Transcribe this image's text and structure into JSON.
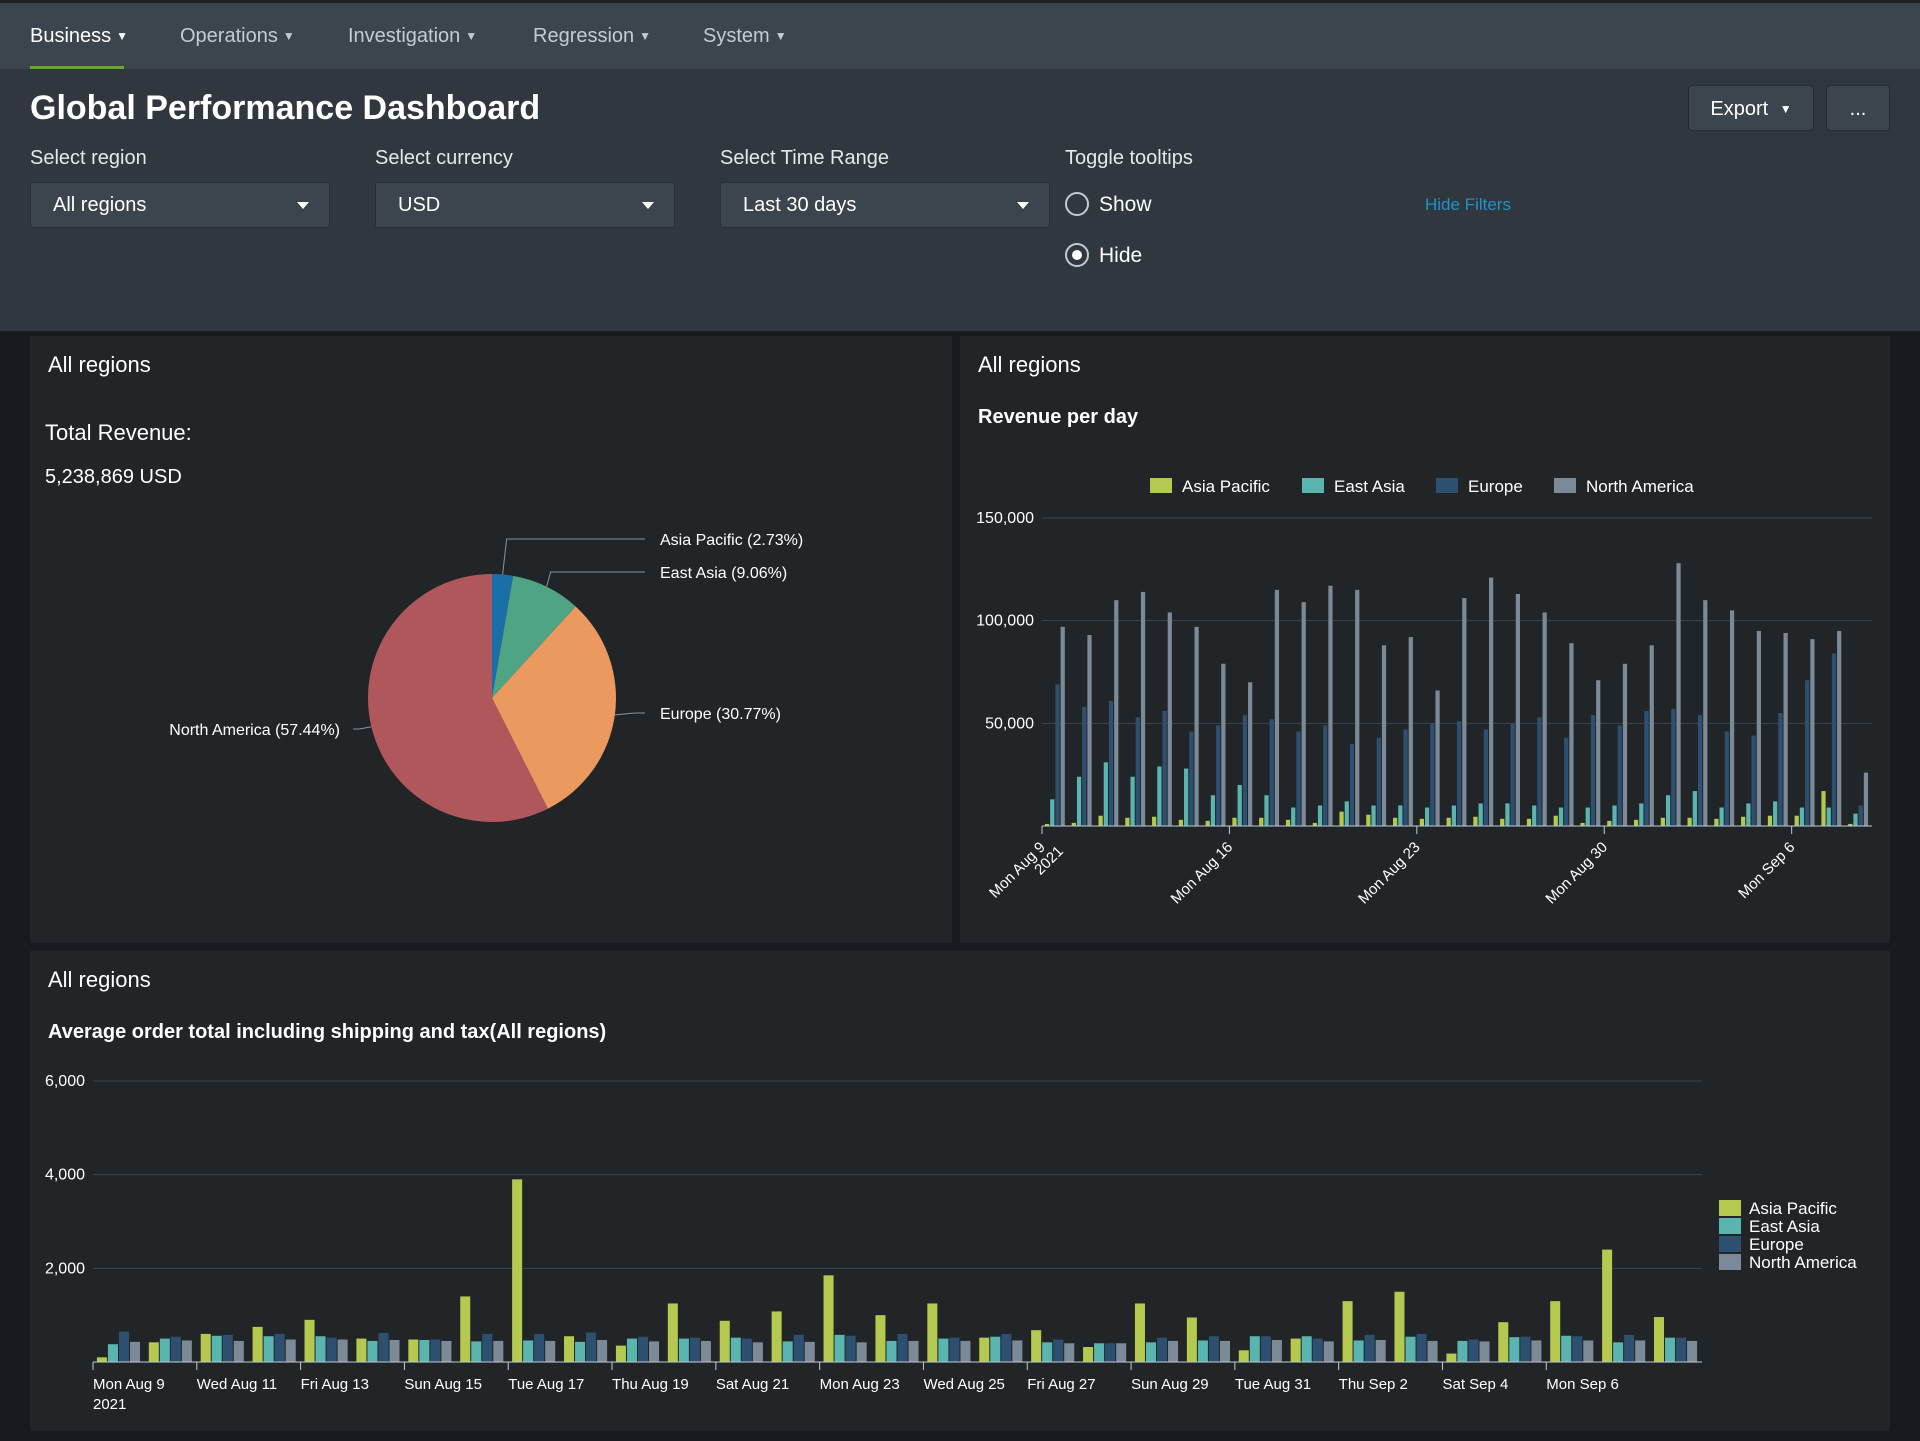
{
  "nav": {
    "items": [
      "Business",
      "Operations",
      "Investigation",
      "Regression",
      "System"
    ],
    "active": "Business"
  },
  "header": {
    "title": "Global Performance Dashboard",
    "export_label": "Export",
    "more_label": "...",
    "hide_filters": "Hide Filters"
  },
  "filters": {
    "region": {
      "label": "Select region",
      "value": "All regions"
    },
    "currency": {
      "label": "Select currency",
      "value": "USD"
    },
    "time_range": {
      "label": "Select Time Range",
      "value": "Last 30 days"
    },
    "tooltips": {
      "label": "Toggle tooltips",
      "options": [
        "Show",
        "Hide"
      ],
      "selected": "Hide"
    }
  },
  "panels": {
    "pie": {
      "title": "All regions",
      "total_label": "Total Revenue:",
      "total_value": "5,238,869 USD"
    },
    "revenue": {
      "title": "All regions"
    },
    "avg_order": {
      "title": "All regions"
    }
  },
  "colors": {
    "asia_pacific": "#b5c84f",
    "east_asia": "#5ab5b0",
    "europe": "#2d5071",
    "north_america": "#7c8a97"
  },
  "chart_data": [
    {
      "type": "pie",
      "title": "Total Revenue",
      "labels": [
        "Asia Pacific (2.73%)",
        "East Asia (9.06%)",
        "Europe (30.77%)",
        "North America (57.44%)"
      ],
      "values": [
        2.73,
        9.06,
        30.77,
        57.44
      ],
      "colors": [
        "#1b6fa8",
        "#4fa484",
        "#ec9960",
        "#b0575c"
      ]
    },
    {
      "type": "bar",
      "title": "Revenue per day",
      "legend": [
        "Asia Pacific",
        "East Asia",
        "Europe",
        "North America"
      ],
      "x_tick_labels": [
        {
          "index": 0,
          "label": "Mon Aug 9",
          "label2": "2021"
        },
        {
          "index": 7,
          "label": "Mon Aug 16"
        },
        {
          "index": 14,
          "label": "Mon Aug 23"
        },
        {
          "index": 21,
          "label": "Mon Aug 30"
        },
        {
          "index": 28,
          "label": "Mon Sep 6"
        }
      ],
      "y_ticks": [
        "50,000",
        "100,000",
        "150,000"
      ],
      "ylim": [
        0,
        150000
      ],
      "categories": [
        "Aug 9",
        "Aug 10",
        "Aug 11",
        "Aug 12",
        "Aug 13",
        "Aug 14",
        "Aug 15",
        "Aug 16",
        "Aug 17",
        "Aug 18",
        "Aug 19",
        "Aug 20",
        "Aug 21",
        "Aug 22",
        "Aug 23",
        "Aug 24",
        "Aug 25",
        "Aug 26",
        "Aug 27",
        "Aug 28",
        "Aug 29",
        "Aug 30",
        "Aug 31",
        "Sep 1",
        "Sep 2",
        "Sep 3",
        "Sep 4",
        "Sep 5",
        "Sep 6",
        "Sep 7",
        "Sep 8"
      ],
      "series": [
        {
          "name": "Asia Pacific",
          "values": [
            1000,
            1500,
            5000,
            4000,
            4500,
            3000,
            2500,
            4000,
            4000,
            3000,
            1500,
            7000,
            5500,
            4000,
            3500,
            4000,
            4500,
            3500,
            3500,
            5000,
            1500,
            2500,
            3000,
            4000,
            4000,
            3500,
            4500,
            5000,
            5000,
            17000,
            1000
          ]
        },
        {
          "name": "East Asia",
          "values": [
            13000,
            24000,
            31000,
            24000,
            29000,
            28000,
            15000,
            20000,
            15000,
            9000,
            10000,
            12000,
            10000,
            10000,
            9000,
            10000,
            11000,
            11000,
            10000,
            9000,
            9000,
            10000,
            11000,
            15000,
            17000,
            9000,
            11000,
            12000,
            9000,
            9000,
            6000
          ]
        },
        {
          "name": "Europe",
          "values": [
            69000,
            58000,
            61000,
            53000,
            56000,
            46000,
            49000,
            54000,
            52000,
            46000,
            49000,
            40000,
            43000,
            47000,
            50000,
            51000,
            47000,
            50000,
            53000,
            43000,
            54000,
            49000,
            56000,
            57000,
            54000,
            46000,
            44000,
            55000,
            71000,
            84000,
            10000
          ]
        },
        {
          "name": "North America",
          "values": [
            97000,
            93000,
            110000,
            114000,
            104000,
            97000,
            79000,
            70000,
            115000,
            109000,
            117000,
            115000,
            88000,
            92000,
            66000,
            111000,
            121000,
            113000,
            104000,
            89000,
            71000,
            79000,
            88000,
            128000,
            110000,
            105000,
            95000,
            94000,
            91000,
            95000,
            26000
          ]
        }
      ]
    },
    {
      "type": "bar",
      "title": "Average order total including shipping and tax(All regions)",
      "legend": [
        "Asia Pacific",
        "East Asia",
        "Europe",
        "North America"
      ],
      "legend_position": "right",
      "x_tick_labels": [
        {
          "index": 0,
          "label": "Mon Aug 9",
          "label2": "2021"
        },
        {
          "index": 2,
          "label": "Wed Aug 11"
        },
        {
          "index": 4,
          "label": "Fri Aug 13"
        },
        {
          "index": 6,
          "label": "Sun Aug 15"
        },
        {
          "index": 8,
          "label": "Tue Aug 17"
        },
        {
          "index": 10,
          "label": "Thu Aug 19"
        },
        {
          "index": 12,
          "label": "Sat Aug 21"
        },
        {
          "index": 14,
          "label": "Mon Aug 23"
        },
        {
          "index": 16,
          "label": "Wed Aug 25"
        },
        {
          "index": 18,
          "label": "Fri Aug 27"
        },
        {
          "index": 20,
          "label": "Sun Aug 29"
        },
        {
          "index": 22,
          "label": "Tue Aug 31"
        },
        {
          "index": 24,
          "label": "Thu Sep 2"
        },
        {
          "index": 26,
          "label": "Sat Sep 4"
        },
        {
          "index": 28,
          "label": "Mon Sep 6"
        }
      ],
      "y_ticks": [
        "2,000",
        "4,000",
        "6,000"
      ],
      "ylim": [
        0,
        6000
      ],
      "categories": [
        "Aug 9",
        "Aug 10",
        "Aug 11",
        "Aug 12",
        "Aug 13",
        "Aug 14",
        "Aug 15",
        "Aug 16",
        "Aug 17",
        "Aug 18",
        "Aug 19",
        "Aug 20",
        "Aug 21",
        "Aug 22",
        "Aug 23",
        "Aug 24",
        "Aug 25",
        "Aug 26",
        "Aug 27",
        "Aug 28",
        "Aug 29",
        "Aug 30",
        "Aug 31",
        "Sep 1",
        "Sep 2",
        "Sep 3",
        "Sep 4",
        "Sep 5",
        "Sep 6",
        "Sep 7",
        "Sep 8"
      ],
      "series": [
        {
          "name": "Asia Pacific",
          "values": [
            100,
            420,
            600,
            750,
            900,
            500,
            480,
            1400,
            3900,
            550,
            350,
            1250,
            880,
            1080,
            1850,
            1000,
            1250,
            520,
            680,
            320,
            1250,
            950,
            250,
            500,
            1300,
            1500,
            180,
            850,
            1300,
            2400,
            960
          ]
        },
        {
          "name": "East Asia",
          "values": [
            380,
            500,
            560,
            550,
            550,
            450,
            470,
            440,
            460,
            430,
            500,
            500,
            520,
            440,
            580,
            450,
            500,
            540,
            420,
            400,
            420,
            460,
            550,
            550,
            460,
            540,
            450,
            530,
            560,
            420,
            520
          ]
        },
        {
          "name": "Europe",
          "values": [
            650,
            540,
            580,
            600,
            520,
            620,
            480,
            600,
            600,
            630,
            540,
            520,
            500,
            580,
            560,
            600,
            520,
            600,
            480,
            400,
            520,
            550,
            550,
            500,
            580,
            600,
            480,
            540,
            550,
            580,
            520
          ]
        },
        {
          "name": "North America",
          "values": [
            430,
            460,
            450,
            480,
            480,
            470,
            450,
            450,
            450,
            470,
            440,
            450,
            420,
            430,
            420,
            450,
            450,
            460,
            400,
            400,
            450,
            450,
            470,
            440,
            470,
            450,
            440,
            460,
            460,
            460,
            450
          ]
        }
      ]
    }
  ]
}
